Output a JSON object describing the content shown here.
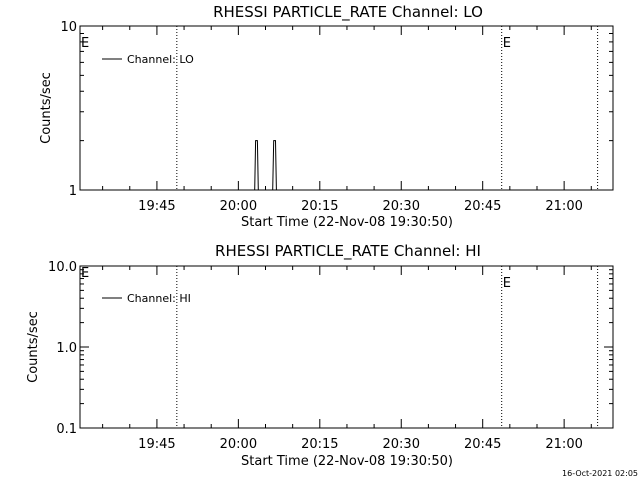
{
  "timestamp": "16-Oct-2021 02:05",
  "chart_data": [
    {
      "type": "line",
      "title": "RHESSI PARTICLE_RATE Channel: LO",
      "xlabel": "Start Time (22-Nov-08 19:30:50)",
      "ylabel": "Counts/sec",
      "x_range": [
        "19:30:50",
        "21:09:00"
      ],
      "x_ticks": [
        "19:45",
        "20:00",
        "20:15",
        "20:30",
        "20:45",
        "21:00"
      ],
      "y_scale": "log",
      "ylim": [
        1,
        10
      ],
      "y_ticks": [
        {
          "value": 1,
          "label": "1"
        },
        {
          "value": 10,
          "label": "10"
        }
      ],
      "series": [
        {
          "name": "Channel: LO",
          "points": [
            {
              "t": "20:03:00",
              "y": 1
            },
            {
              "t": "20:03:10",
              "y": 2
            },
            {
              "t": "20:03:30",
              "y": 2
            },
            {
              "t": "20:03:40",
              "y": 1
            },
            {
              "t": "20:06:20",
              "y": 1
            },
            {
              "t": "20:06:30",
              "y": 2
            },
            {
              "t": "20:06:50",
              "y": 2
            },
            {
              "t": "20:07:00",
              "y": 1
            }
          ]
        }
      ],
      "event_lines": [
        {
          "t": "19:48:40",
          "label": ""
        },
        {
          "t": "20:48:30",
          "label": "E"
        },
        {
          "t": "21:06:10",
          "label": ""
        }
      ],
      "edge_label": "E",
      "legend_position": "top-left",
      "grid": false
    },
    {
      "type": "line",
      "title": "RHESSI PARTICLE_RATE Channel: HI",
      "xlabel": "Start Time (22-Nov-08 19:30:50)",
      "ylabel": "Counts/sec",
      "x_range": [
        "19:30:50",
        "21:09:00"
      ],
      "x_ticks": [
        "19:45",
        "20:00",
        "20:15",
        "20:30",
        "20:45",
        "21:00"
      ],
      "y_scale": "log",
      "ylim": [
        0.1,
        10
      ],
      "y_ticks": [
        {
          "value": 0.1,
          "label": "0.1"
        },
        {
          "value": 1,
          "label": "1.0"
        },
        {
          "value": 10,
          "label": "10.0"
        }
      ],
      "series": [
        {
          "name": "Channel: HI",
          "points": []
        }
      ],
      "event_lines": [
        {
          "t": "19:48:40",
          "label": ""
        },
        {
          "t": "20:48:30",
          "label": "E"
        },
        {
          "t": "21:06:10",
          "label": ""
        }
      ],
      "edge_label": "E",
      "legend_position": "top-left",
      "grid": false
    }
  ]
}
